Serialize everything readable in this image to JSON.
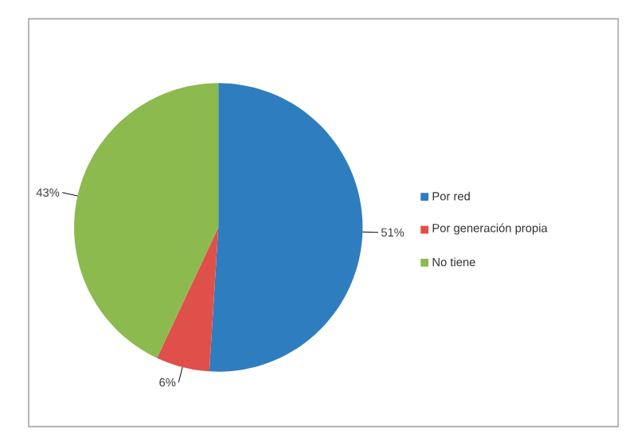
{
  "chart_data": {
    "type": "pie",
    "categories": [
      "Por red",
      "Por generación propia",
      "No tiene"
    ],
    "values": [
      51,
      6,
      43
    ],
    "colors": [
      "#2e7dbf",
      "#e0504a",
      "#8cba4e"
    ],
    "value_labels": [
      "51%",
      "6%",
      "43%"
    ],
    "legend": "right"
  }
}
